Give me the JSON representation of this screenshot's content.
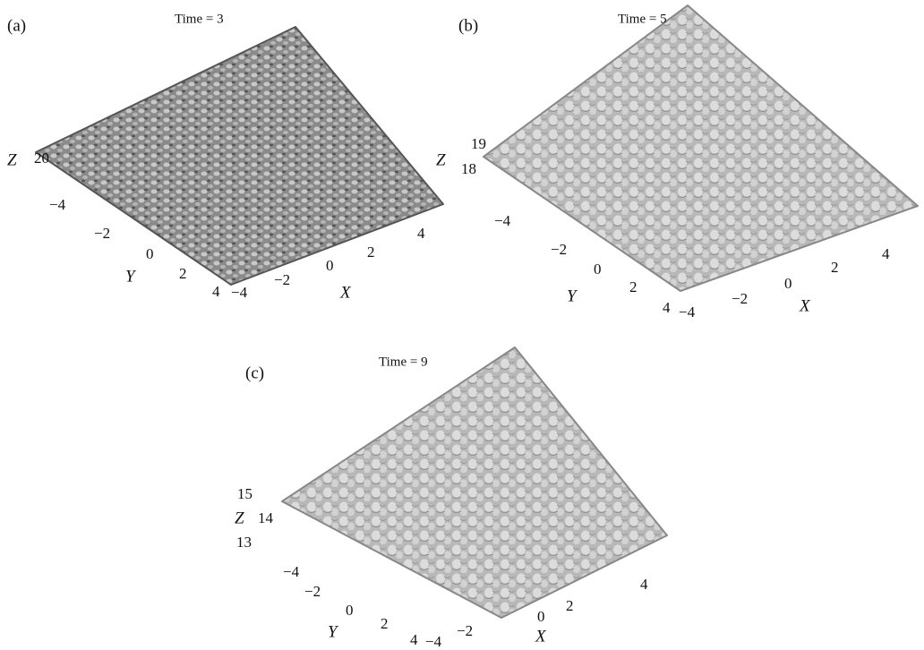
{
  "panels": [
    {
      "label": "(a)",
      "title": "Time = 3",
      "z_label": "Z",
      "z_ticks": [
        "20"
      ],
      "y_label": "Y",
      "y_ticks": [
        "−4",
        "−2",
        "0",
        "2",
        "4"
      ],
      "x_label": "X",
      "x_ticks": [
        "−4",
        "−2",
        "0",
        "2",
        "4"
      ]
    },
    {
      "label": "(b)",
      "title": "Time = 5",
      "z_label": "Z",
      "z_ticks": [
        "19",
        "18"
      ],
      "y_label": "Y",
      "y_ticks": [
        "−4",
        "−2",
        "0",
        "2",
        "4"
      ],
      "x_label": "X",
      "x_ticks": [
        "−4",
        "−2",
        "0",
        "2",
        "4"
      ]
    },
    {
      "label": "(c)",
      "title": "Time = 9",
      "z_label": "Z",
      "z_ticks": [
        "15",
        "14",
        "13"
      ],
      "y_label": "Y",
      "y_ticks": [
        "−4",
        "−2",
        "0",
        "2",
        "4"
      ],
      "x_label": "X",
      "x_ticks": [
        "−4",
        "−2",
        "0",
        "2",
        "4"
      ]
    }
  ]
}
